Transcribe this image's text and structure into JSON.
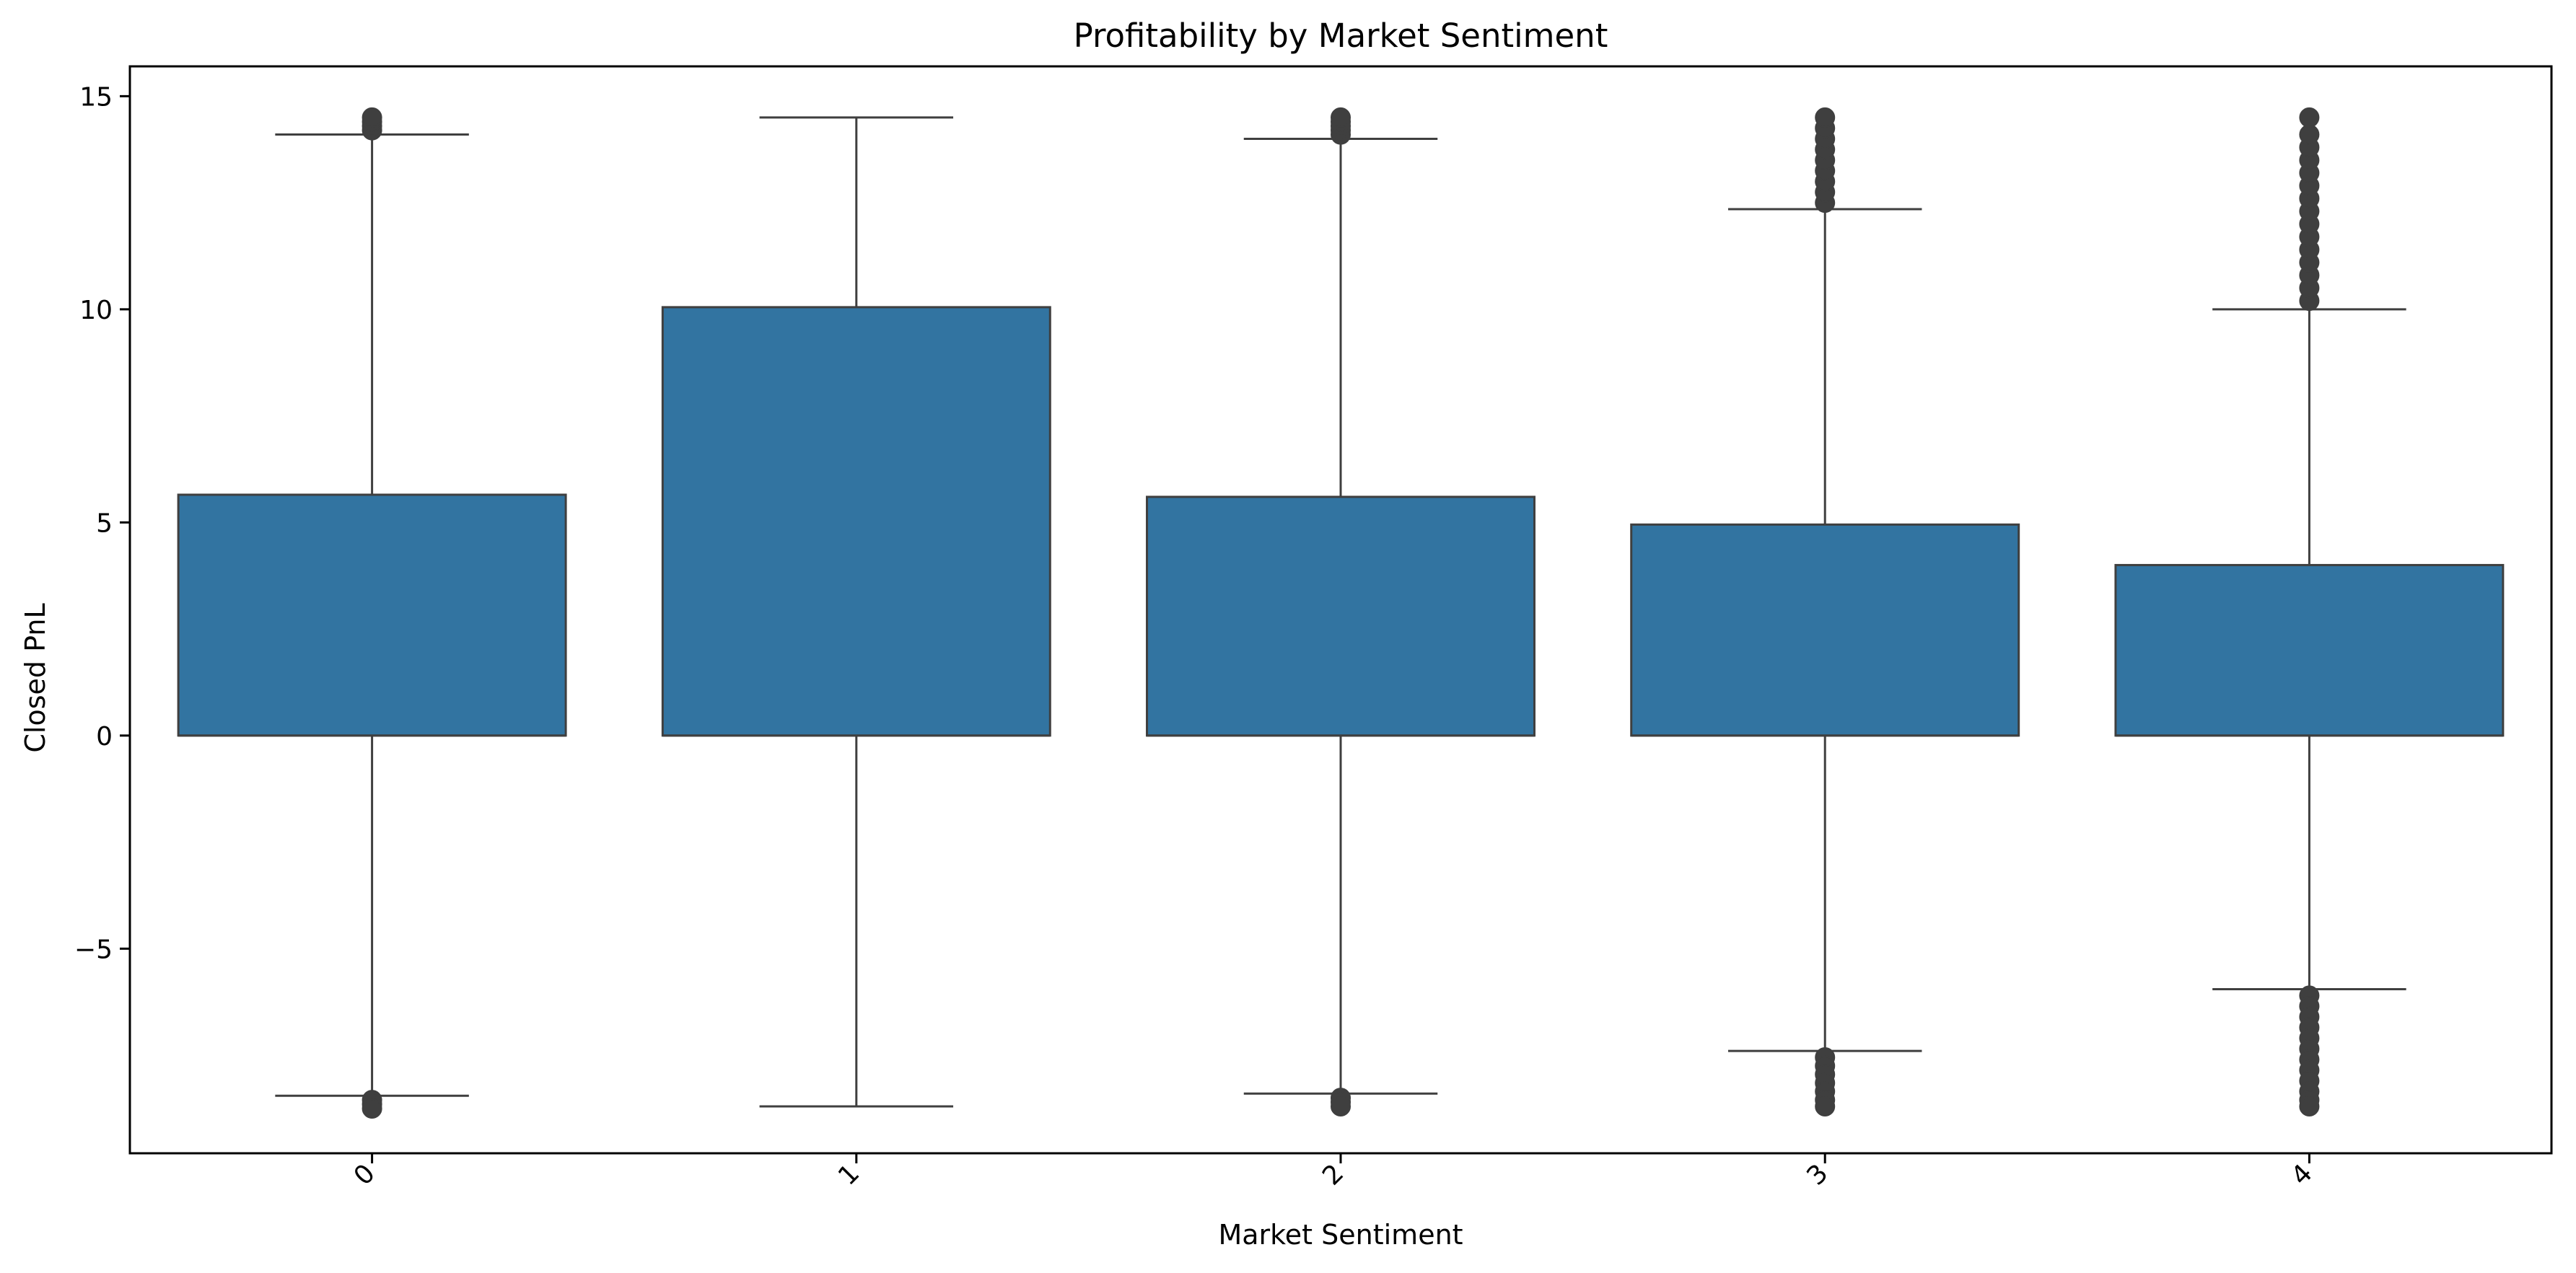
{
  "chart_data": {
    "type": "box",
    "title": "Profitability by Market Sentiment",
    "xlabel": "Market Sentiment",
    "ylabel": "Closed PnL",
    "categories": [
      "0",
      "1",
      "2",
      "3",
      "4"
    ],
    "y_ticks": [
      -5,
      0,
      5,
      10,
      15
    ],
    "y_tick_labels": [
      "−5",
      "0",
      "5",
      "10",
      "15"
    ],
    "ylim": [
      -9.8,
      15.7
    ],
    "x_tick_rotation": 45,
    "grid": false,
    "box_color": "#3274a1",
    "line_color": "#3f3f3f",
    "boxes": [
      {
        "category": "0",
        "whisker_low": -8.45,
        "q1": 0,
        "median": 0,
        "q3": 5.65,
        "whisker_high": 14.1,
        "outliers_high": [
          14.2,
          14.3,
          14.4,
          14.5
        ],
        "outliers_low": [
          -8.55,
          -8.65,
          -8.75
        ]
      },
      {
        "category": "1",
        "whisker_low": -8.7,
        "q1": 0,
        "median": 0,
        "q3": 10.05,
        "whisker_high": 14.5,
        "outliers_high": [],
        "outliers_low": []
      },
      {
        "category": "2",
        "whisker_low": -8.4,
        "q1": 0,
        "median": 0,
        "q3": 5.6,
        "whisker_high": 14.0,
        "outliers_high": [
          14.1,
          14.2,
          14.3,
          14.4,
          14.5
        ],
        "outliers_low": [
          -8.5,
          -8.6,
          -8.7
        ]
      },
      {
        "category": "3",
        "whisker_low": -7.4,
        "q1": 0,
        "median": 0,
        "q3": 4.95,
        "whisker_high": 12.35,
        "outliers_high": [
          12.5,
          12.75,
          13.0,
          13.25,
          13.5,
          13.75,
          14.0,
          14.25,
          14.5
        ],
        "outliers_low": [
          -7.55,
          -7.75,
          -7.95,
          -8.15,
          -8.35,
          -8.55,
          -8.7
        ]
      },
      {
        "category": "4",
        "whisker_low": -5.95,
        "q1": 0,
        "median": 0,
        "q3": 4.0,
        "whisker_high": 10.0,
        "outliers_high": [
          10.2,
          10.5,
          10.8,
          11.1,
          11.4,
          11.7,
          12.0,
          12.3,
          12.6,
          12.9,
          13.2,
          13.5,
          13.8,
          14.1,
          14.5
        ],
        "outliers_low": [
          -6.1,
          -6.35,
          -6.6,
          -6.85,
          -7.1,
          -7.35,
          -7.6,
          -7.85,
          -8.1,
          -8.35,
          -8.55,
          -8.7
        ]
      }
    ]
  }
}
